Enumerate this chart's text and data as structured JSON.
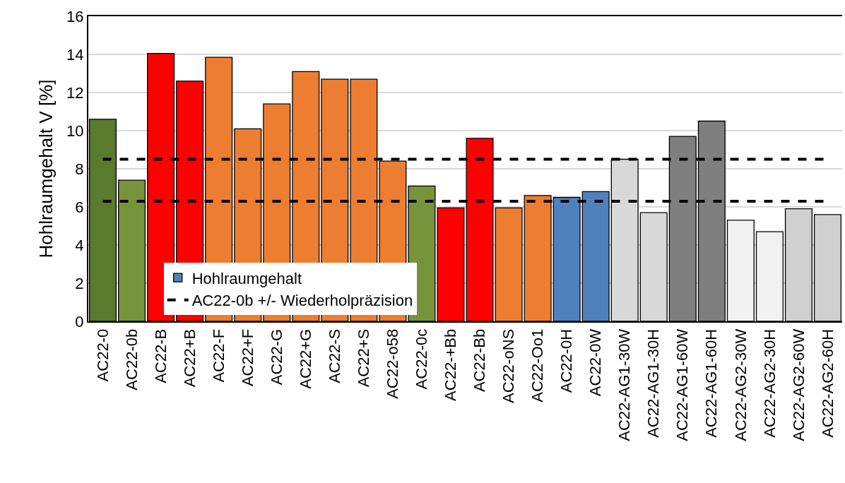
{
  "chart_data": {
    "type": "bar",
    "ylabel": "Hohlraumgehalt V [%]",
    "categories": [
      "AC22-0",
      "AC22-0b",
      "AC22-B",
      "AC22+B",
      "AC22-F",
      "AC22+F",
      "AC22-G",
      "AC22+G",
      "AC22-S",
      "AC22+S",
      "AC22-o58",
      "AC22-0c",
      "AC22-+Bb",
      "AC22-Bb",
      "AC22-oNS",
      "AC22-Oo1",
      "AC22-0H",
      "AC22-0W",
      "AC22-AG1-30W",
      "AC22-AG1-30H",
      "AC22-AG1-60W",
      "AC22-AG1-60H",
      "AC22-AG2-30W",
      "AC22-AG2-30H",
      "AC22-AG2-60W",
      "AC22-AG2-60H"
    ],
    "series": [
      {
        "name": "Hohlraumgehalt",
        "color": "#4f81bd",
        "colors": [
          "#5a7a2e",
          "#77933c",
          "#ff0000",
          "#ff0000",
          "#ed7d31",
          "#ed7d31",
          "#ed7d31",
          "#ed7d31",
          "#ed7d31",
          "#ed7d31",
          "#ed7d31",
          "#77933c",
          "#ff0000",
          "#ff0000",
          "#ed7d31",
          "#ed7d31",
          "#4f81bd",
          "#4f81bd",
          "#d9d9d9",
          "#d9d9d9",
          "#7f7f7f",
          "#7f7f7f",
          "#f2f2f2",
          "#f2f2f2",
          "#d0d0d0",
          "#d0d0d0"
        ],
        "values": [
          10.6,
          7.4,
          14.05,
          12.6,
          13.85,
          10.1,
          11.4,
          13.1,
          12.7,
          12.7,
          8.4,
          7.1,
          5.95,
          9.6,
          5.95,
          6.6,
          6.5,
          6.8,
          8.5,
          5.7,
          9.7,
          10.5,
          5.3,
          4.7,
          5.9,
          5.6
        ]
      }
    ],
    "ylim": [
      0,
      16
    ],
    "yticks": [
      0,
      2,
      4,
      6,
      8,
      10,
      12,
      14,
      16
    ],
    "grid": "y",
    "legend": "bottom left",
    "ref_lines": [
      {
        "axis": "y",
        "value": 8.5,
        "label": "AC22-0b +/- Wiederholpräzision",
        "color": "#000000",
        "line_style": "dashed"
      },
      {
        "axis": "y",
        "value": 6.3,
        "label": null,
        "color": "#000000",
        "line_style": "dashed"
      }
    ]
  }
}
